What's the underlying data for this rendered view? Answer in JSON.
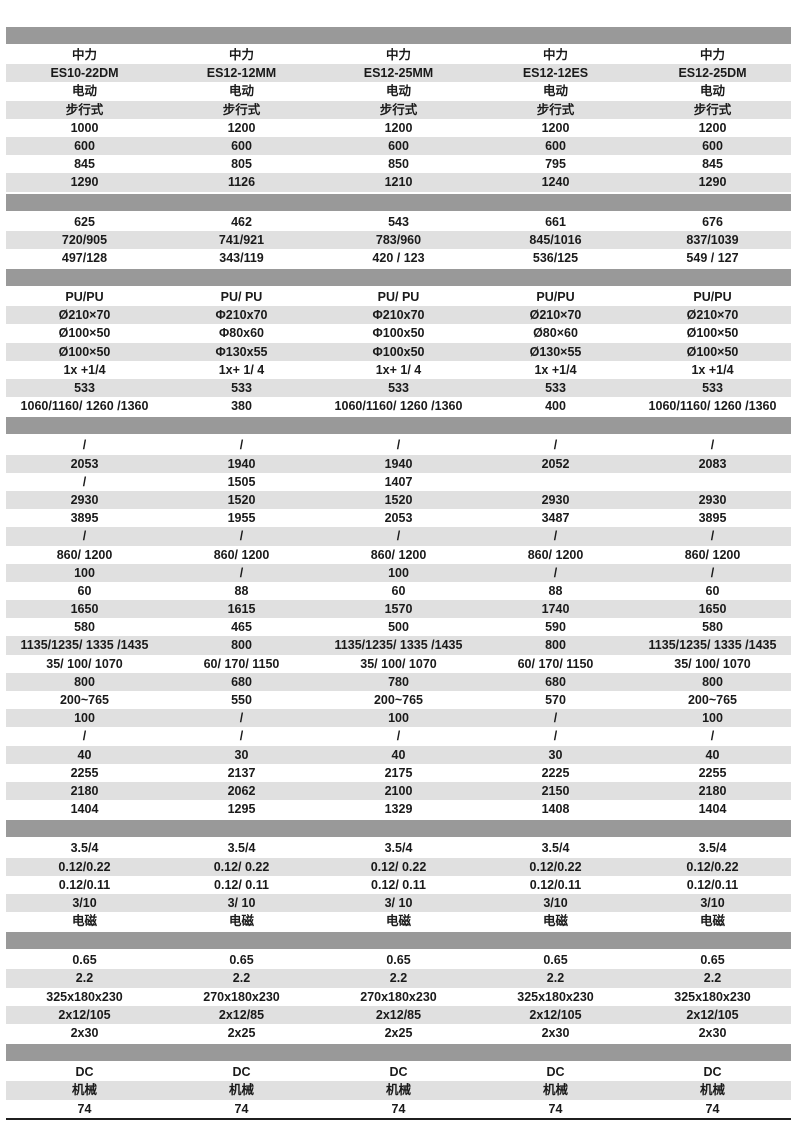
{
  "colors": {
    "separator": "#999999",
    "alt_row": "#e0e0e0",
    "base_row": "#ffffff",
    "text": "#1a1a1a",
    "bottom_rule": "#1f1f1f",
    "page_background": "#ffffff"
  },
  "table": {
    "columns": 5,
    "sections": [
      {
        "rows": [
          [
            "中力",
            "中力",
            "中力",
            "中力",
            "中力"
          ],
          [
            "ES10-22DM",
            "ES12-12MM",
            "ES12-25MM",
            "ES12-12ES",
            "ES12-25DM"
          ],
          [
            "电动",
            "电动",
            "电动",
            "电动",
            "电动"
          ],
          [
            "步行式",
            "步行式",
            "步行式",
            "步行式",
            "步行式"
          ],
          [
            "1000",
            "1200",
            "1200",
            "1200",
            "1200"
          ],
          [
            "600",
            "600",
            "600",
            "600",
            "600"
          ],
          [
            "845",
            "805",
            "850",
            "795",
            "845"
          ],
          [
            "1290",
            "1126",
            "1210",
            "1240",
            "1290"
          ]
        ]
      },
      {
        "rows": [
          [
            "625",
            "462",
            "543",
            "661",
            "676"
          ],
          [
            "720/905",
            "741/921",
            "783/960",
            "845/1016",
            "837/1039"
          ],
          [
            "497/128",
            "343/119",
            "420 / 123",
            "536/125",
            "549 / 127"
          ]
        ]
      },
      {
        "rows": [
          [
            "PU/PU",
            "PU/ PU",
            "PU/ PU",
            "PU/PU",
            "PU/PU"
          ],
          [
            "Ø210×70",
            "Φ210x70",
            "Φ210x70",
            "Ø210×70",
            "Ø210×70"
          ],
          [
            "Ø100×50",
            "Φ80x60",
            "Φ100x50",
            "Ø80×60",
            "Ø100×50"
          ],
          [
            "Ø100×50",
            "Φ130x55",
            "Φ100x50",
            "Ø130×55",
            "Ø100×50"
          ],
          [
            "1x +1/4",
            "1x+ 1/ 4",
            "1x+ 1/ 4",
            "1x +1/4",
            "1x +1/4"
          ],
          [
            "533",
            "533",
            "533",
            "533",
            "533"
          ],
          [
            "1060/1160/ 1260 /1360",
            "380",
            "1060/1160/ 1260 /1360",
            "400",
            "1060/1160/ 1260 /1360"
          ]
        ]
      },
      {
        "rows": [
          [
            "/",
            "/",
            "/",
            "/",
            "/"
          ],
          [
            "2053",
            "1940",
            "1940",
            "2052",
            "2083"
          ],
          [
            "/",
            "1505",
            "1407",
            "",
            ""
          ],
          [
            "2930",
            "1520",
            "1520",
            "2930",
            "2930"
          ],
          [
            "3895",
            "1955",
            "2053",
            "3487",
            "3895"
          ],
          [
            "/",
            "/",
            "/",
            "/",
            "/"
          ],
          [
            "860/ 1200",
            "860/ 1200",
            "860/ 1200",
            "860/ 1200",
            "860/ 1200"
          ],
          [
            "100",
            "/",
            "100",
            "/",
            "/"
          ],
          [
            "60",
            "88",
            "60",
            "88",
            "60"
          ],
          [
            "1650",
            "1615",
            "1570",
            "1740",
            "1650"
          ],
          [
            "580",
            "465",
            "500",
            "590",
            "580"
          ],
          [
            "1135/1235/ 1335 /1435",
            "800",
            "1135/1235/ 1335 /1435",
            "800",
            "1135/1235/ 1335 /1435"
          ],
          [
            "35/ 100/ 1070",
            "60/ 170/ 1150",
            "35/ 100/ 1070",
            "60/ 170/ 1150",
            "35/ 100/ 1070"
          ],
          [
            "800",
            "680",
            "780",
            "680",
            "800"
          ],
          [
            "200~765",
            "550",
            "200~765",
            "570",
            "200~765"
          ],
          [
            "100",
            "/",
            "100",
            "/",
            "100"
          ],
          [
            "/",
            "/",
            "/",
            "/",
            "/"
          ],
          [
            "40",
            "30",
            "40",
            "30",
            "40"
          ],
          [
            "2255",
            "2137",
            "2175",
            "2225",
            "2255"
          ],
          [
            "2180",
            "2062",
            "2100",
            "2150",
            "2180"
          ],
          [
            "1404",
            "1295",
            "1329",
            "1408",
            "1404"
          ]
        ]
      },
      {
        "rows": [
          [
            "3.5/4",
            "3.5/4",
            "3.5/4",
            "3.5/4",
            "3.5/4"
          ],
          [
            "0.12/0.22",
            "0.12/ 0.22",
            "0.12/ 0.22",
            "0.12/0.22",
            "0.12/0.22"
          ],
          [
            "0.12/0.11",
            "0.12/ 0.11",
            "0.12/ 0.11",
            "0.12/0.11",
            "0.12/0.11"
          ],
          [
            "3/10",
            "3/ 10",
            "3/ 10",
            "3/10",
            "3/10"
          ],
          [
            "电磁",
            "电磁",
            "电磁",
            "电磁",
            "电磁"
          ]
        ]
      },
      {
        "rows": [
          [
            "0.65",
            "0.65",
            "0.65",
            "0.65",
            "0.65"
          ],
          [
            "2.2",
            "2.2",
            "2.2",
            "2.2",
            "2.2"
          ],
          [
            "325x180x230",
            "270x180x230",
            "270x180x230",
            "325x180x230",
            "325x180x230"
          ],
          [
            "2x12/105",
            "2x12/85",
            "2x12/85",
            "2x12/105",
            "2x12/105"
          ],
          [
            "2x30",
            "2x25",
            "2x25",
            "2x30",
            "2x30"
          ]
        ]
      },
      {
        "rows": [
          [
            "DC",
            "DC",
            "DC",
            "DC",
            "DC"
          ],
          [
            "机械",
            "机械",
            "机械",
            "机械",
            "机械"
          ],
          [
            "74",
            "74",
            "74",
            "74",
            "74"
          ]
        ]
      }
    ]
  }
}
